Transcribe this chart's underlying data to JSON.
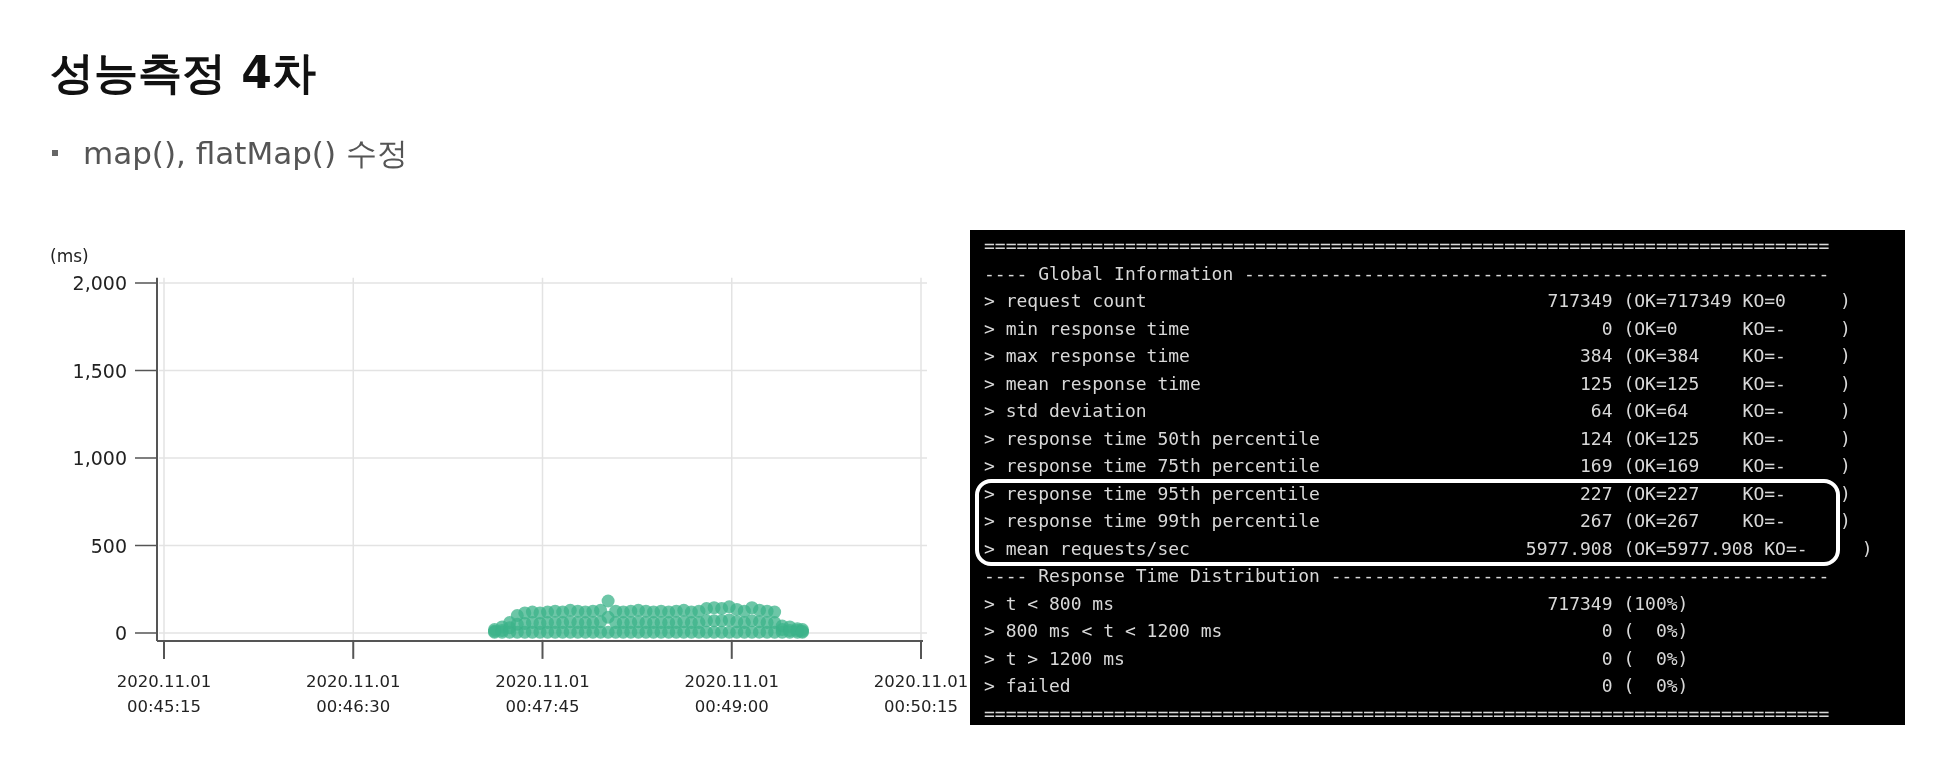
{
  "chart_data": [
    {
      "type": "scatter",
      "title": "성능측정 4차",
      "subtitle": "map(), flatMap() 수정",
      "ylabel": "(ms)",
      "color": "#3cb38a",
      "marker": "circle",
      "grid": true,
      "xlim": [
        "2020-11-01T00:45:15",
        "2020-11-01T00:50:15"
      ],
      "ylim": [
        -45,
        2030
      ],
      "xticks": [
        {
          "value": "2020-11-01T00:45:15",
          "label": "2020.11.01\n00:45:15"
        },
        {
          "value": "2020-11-01T00:46:30",
          "label": "2020.11.01\n00:46:30"
        },
        {
          "value": "2020-11-01T00:47:45",
          "label": "2020.11.01\n00:47:45"
        },
        {
          "value": "2020-11-01T00:49:00",
          "label": "2020.11.01\n00:49:00"
        },
        {
          "value": "2020-11-01T00:50:15",
          "label": "2020.11.01\n00:50:15"
        }
      ],
      "yticks": [
        0,
        500,
        {
          "value": 1000,
          "label": "1,000"
        },
        {
          "value": 1500,
          "label": "1,500"
        },
        {
          "value": 2000,
          "label": "2,000"
        }
      ],
      "x": [
        "2020-11-01T00:47:26",
        "2020-11-01T00:47:26",
        "2020-11-01T00:47:26",
        "2020-11-01T00:47:29",
        "2020-11-01T00:47:29",
        "2020-11-01T00:47:29",
        "2020-11-01T00:47:32",
        "2020-11-01T00:47:32",
        "2020-11-01T00:47:32",
        "2020-11-01T00:47:35",
        "2020-11-01T00:47:35",
        "2020-11-01T00:47:35",
        "2020-11-01T00:47:38",
        "2020-11-01T00:47:38",
        "2020-11-01T00:47:38",
        "2020-11-01T00:47:41",
        "2020-11-01T00:47:41",
        "2020-11-01T00:47:41",
        "2020-11-01T00:47:44",
        "2020-11-01T00:47:44",
        "2020-11-01T00:47:44",
        "2020-11-01T00:47:47",
        "2020-11-01T00:47:47",
        "2020-11-01T00:47:47",
        "2020-11-01T00:47:50",
        "2020-11-01T00:47:50",
        "2020-11-01T00:47:50",
        "2020-11-01T00:47:53",
        "2020-11-01T00:47:53",
        "2020-11-01T00:47:53",
        "2020-11-01T00:47:56",
        "2020-11-01T00:47:56",
        "2020-11-01T00:47:56",
        "2020-11-01T00:47:59",
        "2020-11-01T00:47:59",
        "2020-11-01T00:47:59",
        "2020-11-01T00:48:02",
        "2020-11-01T00:48:02",
        "2020-11-01T00:48:02",
        "2020-11-01T00:48:05",
        "2020-11-01T00:48:05",
        "2020-11-01T00:48:05",
        "2020-11-01T00:48:08",
        "2020-11-01T00:48:08",
        "2020-11-01T00:48:08",
        "2020-11-01T00:48:11",
        "2020-11-01T00:48:11",
        "2020-11-01T00:48:11",
        "2020-11-01T00:48:14",
        "2020-11-01T00:48:14",
        "2020-11-01T00:48:14",
        "2020-11-01T00:48:17",
        "2020-11-01T00:48:17",
        "2020-11-01T00:48:17",
        "2020-11-01T00:48:20",
        "2020-11-01T00:48:20",
        "2020-11-01T00:48:20",
        "2020-11-01T00:48:23",
        "2020-11-01T00:48:23",
        "2020-11-01T00:48:23",
        "2020-11-01T00:48:26",
        "2020-11-01T00:48:26",
        "2020-11-01T00:48:26",
        "2020-11-01T00:48:29",
        "2020-11-01T00:48:29",
        "2020-11-01T00:48:29",
        "2020-11-01T00:48:32",
        "2020-11-01T00:48:32",
        "2020-11-01T00:48:32",
        "2020-11-01T00:48:35",
        "2020-11-01T00:48:35",
        "2020-11-01T00:48:35",
        "2020-11-01T00:48:38",
        "2020-11-01T00:48:38",
        "2020-11-01T00:48:38",
        "2020-11-01T00:48:41",
        "2020-11-01T00:48:41",
        "2020-11-01T00:48:41",
        "2020-11-01T00:48:44",
        "2020-11-01T00:48:44",
        "2020-11-01T00:48:44",
        "2020-11-01T00:48:47",
        "2020-11-01T00:48:47",
        "2020-11-01T00:48:47",
        "2020-11-01T00:48:50",
        "2020-11-01T00:48:50",
        "2020-11-01T00:48:50",
        "2020-11-01T00:48:53",
        "2020-11-01T00:48:53",
        "2020-11-01T00:48:53",
        "2020-11-01T00:48:56",
        "2020-11-01T00:48:56",
        "2020-11-01T00:48:56",
        "2020-11-01T00:48:59",
        "2020-11-01T00:48:59",
        "2020-11-01T00:48:59",
        "2020-11-01T00:49:02",
        "2020-11-01T00:49:02",
        "2020-11-01T00:49:02",
        "2020-11-01T00:49:05",
        "2020-11-01T00:49:05",
        "2020-11-01T00:49:05",
        "2020-11-01T00:49:08",
        "2020-11-01T00:49:08",
        "2020-11-01T00:49:08",
        "2020-11-01T00:49:11",
        "2020-11-01T00:49:11",
        "2020-11-01T00:49:11",
        "2020-11-01T00:49:14",
        "2020-11-01T00:49:14",
        "2020-11-01T00:49:14",
        "2020-11-01T00:49:17",
        "2020-11-01T00:49:17",
        "2020-11-01T00:49:17",
        "2020-11-01T00:49:20",
        "2020-11-01T00:49:20",
        "2020-11-01T00:49:20",
        "2020-11-01T00:49:23",
        "2020-11-01T00:49:23",
        "2020-11-01T00:49:23",
        "2020-11-01T00:49:26",
        "2020-11-01T00:49:26",
        "2020-11-01T00:49:26",
        "2020-11-01T00:49:28",
        "2020-11-01T00:49:28",
        "2020-11-01T00:49:28"
      ],
      "values": [
        20,
        10,
        5,
        35,
        15,
        5,
        60,
        30,
        5,
        100,
        50,
        5,
        115,
        55,
        5,
        120,
        60,
        5,
        115,
        55,
        5,
        120,
        60,
        5,
        125,
        60,
        5,
        120,
        60,
        5,
        130,
        65,
        5,
        125,
        60,
        5,
        120,
        60,
        5,
        125,
        60,
        5,
        130,
        65,
        5,
        183,
        90,
        5,
        125,
        60,
        5,
        120,
        60,
        5,
        125,
        60,
        5,
        130,
        65,
        5,
        125,
        60,
        5,
        120,
        60,
        5,
        125,
        60,
        5,
        120,
        60,
        5,
        125,
        60,
        5,
        130,
        65,
        5,
        120,
        60,
        5,
        125,
        60,
        5,
        140,
        70,
        5,
        145,
        70,
        5,
        140,
        70,
        5,
        150,
        75,
        5,
        135,
        65,
        5,
        125,
        60,
        5,
        145,
        70,
        5,
        130,
        65,
        5,
        125,
        60,
        5,
        120,
        60,
        5,
        40,
        20,
        5,
        35,
        15,
        5,
        25,
        15,
        5,
        20,
        10,
        5
      ]
    },
    {
      "type": "other",
      "annotations": [
        "==============================================================================",
        "---- Global Information ------------------------------------------------------",
        "> request count                                     717349 (OK=717349 KO=0     )",
        "> min response time                                      0 (OK=0      KO=-     )",
        "> max response time                                    384 (OK=384    KO=-     )",
        "> mean response time                                   125 (OK=125    KO=-     )",
        "> std deviation                                         64 (OK=64     KO=-     )",
        "> response time 50th percentile                        124 (OK=125    KO=-     )",
        "> response time 75th percentile                        169 (OK=169    KO=-     )",
        "> response time 95th percentile                        227 (OK=227    KO=-     )",
        "> response time 99th percentile                        267 (OK=267    KO=-     )",
        "> mean requests/sec                               5977.908 (OK=5977.908 KO=-     )",
        "---- Response Time Distribution ----------------------------------------------",
        "> t < 800 ms                                        717349 (100%)",
        "> 800 ms < t < 1200 ms                                   0 (  0%)",
        "> t > 1200 ms                                            0 (  0%)",
        "> failed                                                 0 (  0%)",
        "=============================================================================="
      ]
    }
  ]
}
